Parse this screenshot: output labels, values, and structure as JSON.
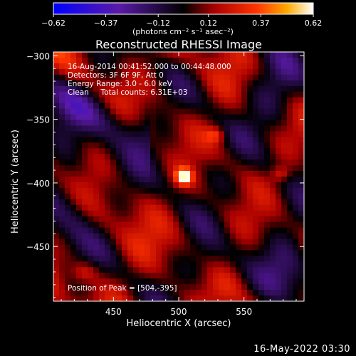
{
  "chart_data": {
    "type": "heatmap",
    "title": "Reconstructed RHESSI Image",
    "xlabel": "Heliocentric X (arcsec)",
    "ylabel": "Heliocentric Y (arcsec)",
    "xlim": [
      404,
      596
    ],
    "ylim": [
      -493,
      -297
    ],
    "x_ticks": [
      450,
      500,
      550
    ],
    "y_ticks": [
      -300,
      -350,
      -400,
      -450
    ],
    "colorbar": {
      "range": [
        -0.62,
        0.62
      ],
      "ticks": [
        -0.62,
        -0.37,
        -0.12,
        0.12,
        0.37,
        0.62
      ],
      "tick_labels": [
        "−0.62",
        "−0.37",
        "−0.12",
        "0.12",
        "0.37",
        "0.62"
      ],
      "unit_label": "(photons cm⁻² s⁻¹ asec⁻²)"
    },
    "annotations": [
      "16-Aug-2014 00:41:52.000 to 00:44:48.000",
      "Detectors: 3F 6F 9F, Att 0",
      "Energy Range: 3.0 - 6.0 keV",
      "Clean     Total counts: 6.31E+03",
      "Position of Peak = [504,-395]"
    ],
    "peak": {
      "x": 504,
      "y": -395,
      "value": 0.62
    },
    "grid": false
  },
  "footer": {
    "date": "16-May-2022 03:30"
  },
  "colors": {
    "background": "#000000",
    "text": "#ffffff",
    "frame": "#ffffff"
  }
}
